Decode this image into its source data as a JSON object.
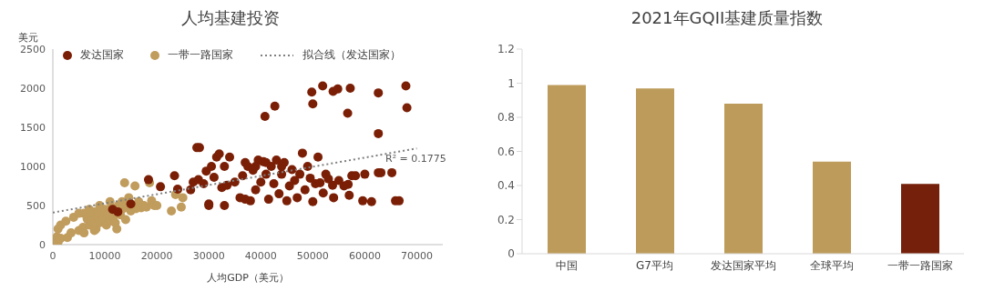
{
  "chart_data": [
    {
      "type": "scatter",
      "title": "人均基建投资",
      "xlabel": "人均GDP（美元）",
      "ylabel": "美元",
      "xlim": [
        0,
        75000
      ],
      "xticks": [
        0,
        10000,
        20000,
        30000,
        40000,
        50000,
        60000,
        70000
      ],
      "ylim": [
        0,
        2500
      ],
      "yticks": [
        0,
        500,
        1000,
        1500,
        2000,
        2500
      ],
      "legend": "top",
      "marker": "circle",
      "annotations": [
        "R² = 0.1775"
      ],
      "series": [
        {
          "name": "一带一路国家",
          "color": "#c09c5d",
          "x": [
            500,
            800,
            1000,
            1500,
            2800,
            3500,
            5000,
            5800,
            6000,
            6600,
            7000,
            7300,
            7600,
            8000,
            8300,
            8600,
            9000,
            9300,
            9600,
            10000,
            10300,
            10600,
            11000,
            11300,
            11600,
            12300,
            12600,
            13000,
            13300,
            13500,
            13800,
            14000,
            14300,
            14600,
            15000,
            15800,
            16000,
            16500,
            17000,
            17500,
            18000,
            18600,
            19000,
            19500,
            20000,
            22800,
            23600,
            24000,
            24700,
            25000,
            1000,
            1500,
            2500,
            4000,
            5000,
            6000,
            7000,
            9000,
            11000,
            12000,
            8000
          ],
          "values": [
            50,
            100,
            30,
            80,
            90,
            150,
            180,
            220,
            400,
            330,
            250,
            380,
            300,
            420,
            200,
            350,
            280,
            400,
            330,
            450,
            250,
            380,
            300,
            470,
            350,
            200,
            500,
            380,
            550,
            460,
            790,
            320,
            520,
            600,
            430,
            750,
            460,
            550,
            470,
            500,
            480,
            790,
            560,
            500,
            500,
            430,
            640,
            700,
            480,
            600,
            200,
            250,
            300,
            350,
            400,
            150,
            450,
            500,
            550,
            280,
            180
          ]
        },
        {
          "name": "发达国家",
          "color": "#7a1f06",
          "x": [
            11500,
            12500,
            15000,
            18400,
            20700,
            23400,
            24000,
            26500,
            27000,
            27700,
            28000,
            29000,
            29500,
            30000,
            30500,
            31000,
            31500,
            32000,
            32500,
            33000,
            33500,
            34000,
            35000,
            36000,
            36500,
            37000,
            37500,
            38000,
            38500,
            39000,
            39500,
            40000,
            40500,
            41000,
            41500,
            42000,
            42500,
            43000,
            43500,
            44000,
            44500,
            45000,
            45500,
            46000,
            46500,
            47000,
            47500,
            48000,
            48500,
            49000,
            49500,
            50000,
            50500,
            51000,
            52000,
            52500,
            53000,
            54000,
            55000,
            56000,
            57000,
            57500,
            58200,
            59600,
            60000,
            61300,
            62600,
            63100,
            65200,
            65900,
            66600,
            56800,
            51400,
            53800,
            28200,
            40800,
            42700,
            49800,
            51900,
            53900,
            54800,
            57200,
            62600,
            67900,
            68100,
            56700,
            62600,
            50000,
            44000,
            41000,
            39000,
            37000,
            33000,
            30000
          ],
          "values": [
            450,
            420,
            520,
            830,
            740,
            880,
            710,
            700,
            800,
            1240,
            830,
            780,
            940,
            520,
            1000,
            860,
            1120,
            1160,
            730,
            1000,
            760,
            1120,
            800,
            600,
            880,
            1050,
            1000,
            560,
            950,
            700,
            1080,
            800,
            1060,
            900,
            580,
            1000,
            780,
            1080,
            650,
            900,
            1050,
            560,
            750,
            960,
            820,
            600,
            900,
            1170,
            700,
            1000,
            850,
            550,
            780,
            1120,
            660,
            900,
            840,
            600,
            820,
            750,
            630,
            880,
            880,
            560,
            900,
            550,
            920,
            920,
            920,
            560,
            560,
            770,
            790,
            760,
            1240,
            1640,
            1770,
            1950,
            2030,
            1960,
            1990,
            2000,
            1940,
            2030,
            1750,
            1680,
            1420,
            1800,
            1000,
            1050,
            1000,
            580,
            500,
            500
          ]
        },
        {
          "name": "拟合线（发达国家）",
          "type": "line",
          "marker": "none",
          "color": "#7f7f7f",
          "line_style": "dotted",
          "x": [
            0,
            70000
          ],
          "values": [
            410,
            1230
          ]
        }
      ]
    },
    {
      "type": "bar",
      "title": "2021年GQII基建质量指数",
      "categories": [
        "中国",
        "G7平均",
        "发达国家平均",
        "全球平均",
        "一带一路国家"
      ],
      "values": [
        0.99,
        0.97,
        0.88,
        0.54,
        0.41
      ],
      "colors": [
        "#bd9c5b",
        "#bd9c5b",
        "#bd9c5b",
        "#bd9c5b",
        "#75200a"
      ],
      "ylim": [
        0,
        1.2
      ],
      "yticks": [
        0,
        0.2,
        0.4,
        0.6,
        0.8,
        1,
        1.2
      ]
    }
  ]
}
